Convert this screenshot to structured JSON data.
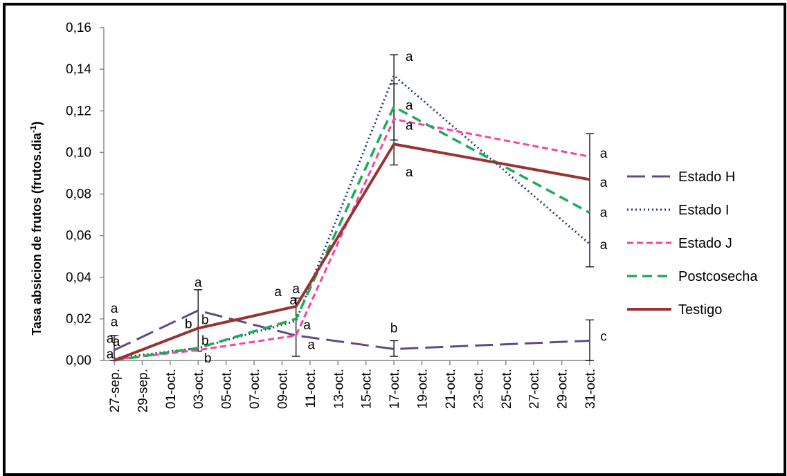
{
  "chart_data": {
    "type": "line",
    "title": "",
    "ylabel": "Tasa absicion de frutos (frutos.dia",
    "ylabel_sup": "-1",
    "ylabel_end": ")",
    "xlabel": "",
    "ylim": [
      0,
      0.16
    ],
    "yticks": [
      0,
      0.02,
      0.04,
      0.06,
      0.08,
      0.1,
      0.12,
      0.14,
      0.16
    ],
    "ytick_labels": [
      "0,00",
      "0,02",
      "0,04",
      "0,06",
      "0,08",
      "0,10",
      "0,12",
      "0,14",
      "0,16"
    ],
    "xtick_labels": [
      "27-sep.",
      "29-sep.",
      "01-oct.",
      "03-oct.",
      "05-oct.",
      "07-oct.",
      "09-oct.",
      "11-oct.",
      "13-oct.",
      "15-oct.",
      "17-oct.",
      "19-oct.",
      "21-oct.",
      "23-oct.",
      "25-oct.",
      "27-oct.",
      "29-oct.",
      "31-oct."
    ],
    "x_points": [
      "27-sep.",
      "03-oct.",
      "10-oct.",
      "17-oct.",
      "31-oct."
    ],
    "x_point_index": [
      0,
      3,
      6.5,
      10,
      17
    ],
    "legend_position": "right",
    "grid": false,
    "series": [
      {
        "name": "Estado H",
        "color": "#5e4a8a",
        "dash": "26 10",
        "width": 3,
        "values": [
          0.005,
          0.024,
          0.012,
          0.0055,
          0.0095
        ]
      },
      {
        "name": "Estado I",
        "color": "#1f3a7a",
        "dash": "2 4",
        "width": 3,
        "values": [
          0.001,
          0.006,
          0.019,
          0.137,
          0.056
        ]
      },
      {
        "name": "Estado J",
        "color": "#ff3fa0",
        "dash": "9 5",
        "width": 3,
        "values": [
          0.0005,
          0.005,
          0.012,
          0.116,
          0.098
        ]
      },
      {
        "name": "Postcosecha",
        "color": "#1faa55",
        "dash": "14 8",
        "width": 3.5,
        "values": [
          0.0,
          0.006,
          0.02,
          0.122,
          0.071
        ]
      },
      {
        "name": "Testigo",
        "color": "#993333",
        "dash": "",
        "width": 4,
        "values": [
          0.0,
          0.0155,
          0.026,
          0.104,
          0.087
        ]
      }
    ],
    "error_bars": [
      {
        "x_index": 0,
        "lo": 0.0,
        "hi": 0.012
      },
      {
        "x_index": 3,
        "lo": 0.0045,
        "hi": 0.034
      },
      {
        "x_index": 6.5,
        "lo": 0.002,
        "hi": 0.03
      },
      {
        "x_index": 10,
        "lo": 0.094,
        "hi": 0.147
      },
      {
        "x_index": 10,
        "lo": 0.106,
        "hi": 0.133
      },
      {
        "x_index": 17,
        "lo": 0.045,
        "hi": 0.109
      },
      {
        "x_index": 10,
        "lo": 0.002,
        "hi": 0.0095
      },
      {
        "x_index": 17,
        "lo": 0.0,
        "hi": 0.0195
      }
    ],
    "annotations": [
      {
        "text": "a",
        "x_index": 0,
        "y": 0.025,
        "dx": 0
      },
      {
        "text": "a",
        "x_index": 0,
        "y": 0.0185,
        "dx": 0
      },
      {
        "text": "a",
        "x_index": 0,
        "y": 0.0105,
        "dx": -6
      },
      {
        "text": "a",
        "x_index": 0,
        "y": 0.009,
        "dx": 3
      },
      {
        "text": "a",
        "x_index": 0,
        "y": 0.003,
        "dx": -6
      },
      {
        "text": "a",
        "x_index": 3,
        "y": 0.0375,
        "dx": 0
      },
      {
        "text": "b",
        "x_index": 3,
        "y": 0.0175,
        "dx": -14
      },
      {
        "text": "b",
        "x_index": 3,
        "y": 0.0195,
        "dx": 10
      },
      {
        "text": "b",
        "x_index": 3,
        "y": 0.0095,
        "dx": 10
      },
      {
        "text": "b",
        "x_index": 3,
        "y": 0.001,
        "dx": 14
      },
      {
        "text": "a",
        "x_index": 6.5,
        "y": 0.033,
        "dx": -26
      },
      {
        "text": "a",
        "x_index": 6.5,
        "y": 0.0345,
        "dx": 0
      },
      {
        "text": "a",
        "x_index": 6.5,
        "y": 0.029,
        "dx": -4
      },
      {
        "text": "a",
        "x_index": 6.5,
        "y": 0.017,
        "dx": 16
      },
      {
        "text": "a",
        "x_index": 6.5,
        "y": 0.0075,
        "dx": 22
      },
      {
        "text": "a",
        "x_index": 10,
        "y": 0.146,
        "dx": 22
      },
      {
        "text": "a",
        "x_index": 10,
        "y": 0.1225,
        "dx": 22
      },
      {
        "text": "a",
        "x_index": 10,
        "y": 0.113,
        "dx": 22
      },
      {
        "text": "a",
        "x_index": 10,
        "y": 0.0905,
        "dx": 22
      },
      {
        "text": "b",
        "x_index": 10,
        "y": 0.0155,
        "dx": 0
      },
      {
        "text": "a",
        "x_index": 17,
        "y": 0.0995,
        "dx": 20
      },
      {
        "text": "a",
        "x_index": 17,
        "y": 0.0855,
        "dx": 20
      },
      {
        "text": "a",
        "x_index": 17,
        "y": 0.071,
        "dx": 20
      },
      {
        "text": "a",
        "x_index": 17,
        "y": 0.0555,
        "dx": 20
      },
      {
        "text": "c",
        "x_index": 17,
        "y": 0.0115,
        "dx": 20
      }
    ]
  }
}
